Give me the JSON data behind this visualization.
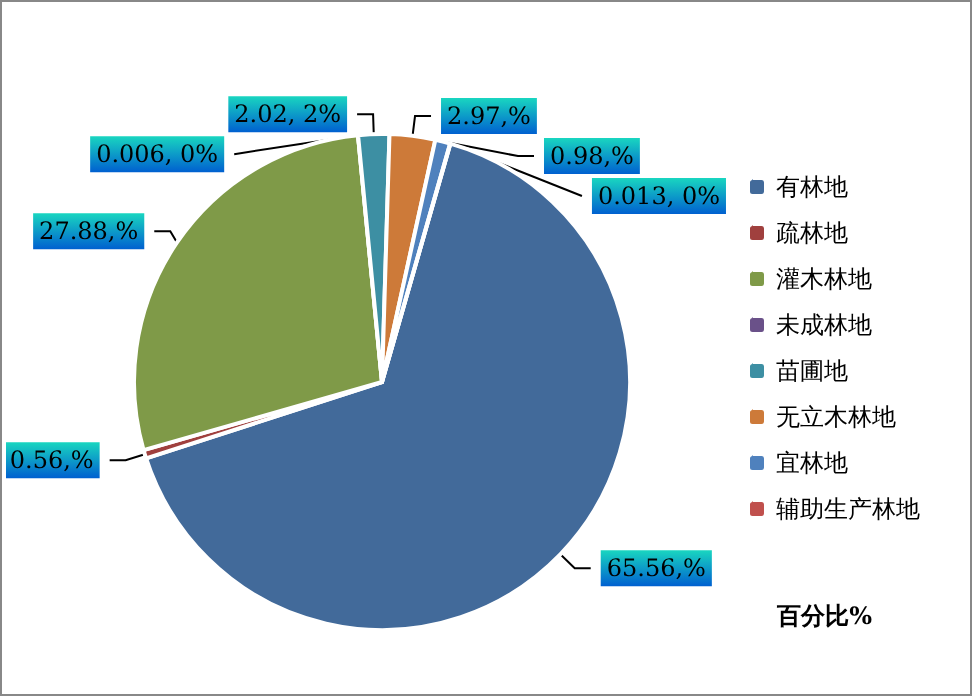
{
  "chart_data": {
    "type": "pie",
    "title": "百分比%",
    "categories": [
      "有林地",
      "疏林地",
      "灌木林地",
      "未成林地",
      "苗圃地",
      "无立木林地",
      "宜林地",
      "辅助生产林地"
    ],
    "values": [
      65.56,
      0.56,
      27.88,
      0.006,
      2.02,
      2.97,
      0.98,
      0.013
    ],
    "value_labels": [
      "65.56,%",
      "0.56,%",
      "27.88,%",
      "0.006, 0%",
      "2.02, 2%",
      "2.97,%",
      "0.98,%",
      "0.013, 0%"
    ],
    "colors": [
      "#426a9a",
      "#a0403e",
      "#7f9a48",
      "#6a5189",
      "#3d8fa3",
      "#cd7a39",
      "#4f81bd",
      "#c0504d"
    ],
    "legend": "right"
  }
}
